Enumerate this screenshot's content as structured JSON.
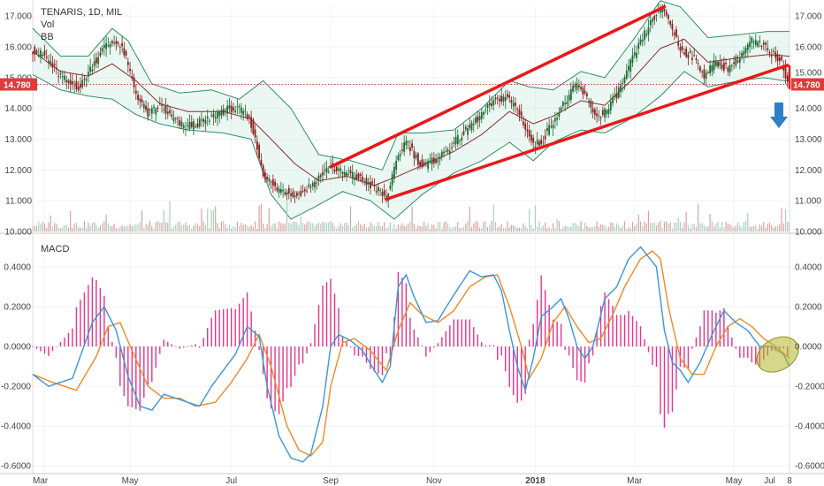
{
  "chart_data": [
    {
      "type": "candlestick",
      "title": "TENARIS, 1D, MIL",
      "indicators": [
        "Vol",
        "BB"
      ],
      "last_price": "14.780",
      "price_axis_ticks": [
        "17.000",
        "16.000",
        "15.000",
        "14.000",
        "13.000",
        "12.000",
        "11.000",
        "10.000"
      ],
      "ylim": [
        10.0,
        17.35
      ],
      "x_ticks": [
        "Mar",
        "May",
        "Jul",
        "Sep",
        "Nov",
        "2018",
        "Mar",
        "May",
        "Jul",
        "8"
      ],
      "close_path": [
        [
          0,
          15.9
        ],
        [
          6,
          15.7
        ],
        [
          12,
          15.2
        ],
        [
          18,
          14.8
        ],
        [
          24,
          14.7
        ],
        [
          30,
          15.4
        ],
        [
          36,
          16.0
        ],
        [
          42,
          16.2
        ],
        [
          46,
          15.8
        ],
        [
          52,
          14.5
        ],
        [
          58,
          13.8
        ],
        [
          64,
          14.1
        ],
        [
          70,
          13.7
        ],
        [
          76,
          13.4
        ],
        [
          82,
          13.5
        ],
        [
          88,
          13.6
        ],
        [
          94,
          13.9
        ],
        [
          100,
          14.0
        ],
        [
          106,
          13.9
        ],
        [
          110,
          13.5
        ],
        [
          116,
          11.9
        ],
        [
          122,
          11.4
        ],
        [
          128,
          11.3
        ],
        [
          134,
          11.2
        ],
        [
          140,
          11.5
        ],
        [
          146,
          11.9
        ],
        [
          150,
          12.1
        ],
        [
          156,
          11.9
        ],
        [
          162,
          11.8
        ],
        [
          168,
          11.6
        ],
        [
          174,
          11.3
        ],
        [
          178,
          11.1
        ],
        [
          184,
          12.4
        ],
        [
          188,
          13.0
        ],
        [
          192,
          12.5
        ],
        [
          196,
          12.1
        ],
        [
          202,
          12.3
        ],
        [
          208,
          12.6
        ],
        [
          214,
          13.0
        ],
        [
          220,
          13.4
        ],
        [
          226,
          13.8
        ],
        [
          232,
          14.2
        ],
        [
          238,
          14.4
        ],
        [
          244,
          14.0
        ],
        [
          248,
          13.4
        ],
        [
          252,
          12.8
        ],
        [
          256,
          12.9
        ],
        [
          262,
          13.6
        ],
        [
          268,
          14.2
        ],
        [
          274,
          14.8
        ],
        [
          280,
          14.2
        ],
        [
          284,
          13.7
        ],
        [
          290,
          14.0
        ],
        [
          296,
          14.7
        ],
        [
          302,
          15.6
        ],
        [
          308,
          16.4
        ],
        [
          314,
          17.1
        ],
        [
          318,
          17.2
        ],
        [
          322,
          16.6
        ],
        [
          326,
          15.9
        ],
        [
          332,
          15.7
        ],
        [
          338,
          15.1
        ],
        [
          344,
          15.5
        ],
        [
          350,
          15.3
        ],
        [
          356,
          15.7
        ],
        [
          362,
          16.2
        ],
        [
          368,
          16.0
        ],
        [
          372,
          15.8
        ],
        [
          376,
          15.6
        ],
        [
          381,
          14.78
        ]
      ],
      "bollinger": {
        "upper": [
          [
            0,
            16.6
          ],
          [
            14,
            15.7
          ],
          [
            28,
            15.7
          ],
          [
            40,
            16.6
          ],
          [
            48,
            16.2
          ],
          [
            60,
            14.8
          ],
          [
            74,
            14.5
          ],
          [
            90,
            14.6
          ],
          [
            104,
            14.3
          ],
          [
            116,
            14.9
          ],
          [
            130,
            14.0
          ],
          [
            144,
            12.5
          ],
          [
            160,
            12.3
          ],
          [
            176,
            12.0
          ],
          [
            184,
            13.2
          ],
          [
            196,
            13.2
          ],
          [
            212,
            13.3
          ],
          [
            226,
            14.0
          ],
          [
            240,
            14.9
          ],
          [
            250,
            14.7
          ],
          [
            262,
            14.6
          ],
          [
            276,
            15.2
          ],
          [
            288,
            15.0
          ],
          [
            302,
            16.2
          ],
          [
            316,
            17.5
          ],
          [
            326,
            17.3
          ],
          [
            340,
            16.3
          ],
          [
            356,
            16.4
          ],
          [
            370,
            16.5
          ],
          [
            378,
            16.5
          ]
        ],
        "lower": [
          [
            0,
            15.1
          ],
          [
            14,
            14.6
          ],
          [
            28,
            14.4
          ],
          [
            40,
            14.3
          ],
          [
            52,
            13.8
          ],
          [
            64,
            13.5
          ],
          [
            78,
            13.3
          ],
          [
            96,
            13.2
          ],
          [
            110,
            13.0
          ],
          [
            120,
            11.2
          ],
          [
            130,
            10.4
          ],
          [
            142,
            10.8
          ],
          [
            156,
            11.3
          ],
          [
            170,
            11.0
          ],
          [
            182,
            10.4
          ],
          [
            196,
            11.2
          ],
          [
            212,
            11.9
          ],
          [
            226,
            12.3
          ],
          [
            240,
            12.9
          ],
          [
            252,
            12.3
          ],
          [
            262,
            12.9
          ],
          [
            276,
            13.3
          ],
          [
            288,
            13.2
          ],
          [
            302,
            13.7
          ],
          [
            316,
            14.4
          ],
          [
            328,
            15.2
          ],
          [
            340,
            14.7
          ],
          [
            356,
            14.9
          ],
          [
            368,
            15.0
          ],
          [
            378,
            14.9
          ]
        ],
        "middle": [
          [
            0,
            15.85
          ],
          [
            14,
            15.2
          ],
          [
            28,
            15.05
          ],
          [
            40,
            15.45
          ],
          [
            52,
            14.9
          ],
          [
            64,
            14.15
          ],
          [
            78,
            13.9
          ],
          [
            96,
            13.9
          ],
          [
            110,
            13.65
          ],
          [
            120,
            13.0
          ],
          [
            132,
            12.2
          ],
          [
            144,
            11.65
          ],
          [
            158,
            11.8
          ],
          [
            172,
            11.5
          ],
          [
            184,
            11.8
          ],
          [
            198,
            12.2
          ],
          [
            212,
            12.6
          ],
          [
            226,
            13.15
          ],
          [
            240,
            13.9
          ],
          [
            252,
            13.5
          ],
          [
            262,
            13.75
          ],
          [
            276,
            14.25
          ],
          [
            288,
            14.1
          ],
          [
            302,
            14.95
          ],
          [
            316,
            15.95
          ],
          [
            328,
            16.25
          ],
          [
            340,
            15.5
          ],
          [
            356,
            15.65
          ],
          [
            370,
            15.75
          ],
          [
            380,
            15.7
          ]
        ]
      },
      "trend_channel": {
        "upper_line": [
          [
            150,
            12.1
          ],
          [
            318,
            17.3
          ]
        ],
        "lower_line": [
          [
            178,
            11.05
          ],
          [
            380,
            15.4
          ]
        ]
      },
      "support_level": 14.78,
      "annotations": [
        "down arrow"
      ],
      "volume": "per-bar histogram along bottom of price pane"
    },
    {
      "type": "line",
      "title": "MACD",
      "y_ticks": [
        "0.4000",
        "0.2000",
        "0.0000",
        "-0.2000",
        "-0.4000",
        "-0.6000"
      ],
      "ylim": [
        -0.63,
        0.56
      ],
      "macd": [
        [
          0,
          -0.14
        ],
        [
          8,
          -0.2
        ],
        [
          20,
          -0.16
        ],
        [
          30,
          0.12
        ],
        [
          36,
          0.2
        ],
        [
          42,
          0.08
        ],
        [
          48,
          -0.15
        ],
        [
          54,
          -0.3
        ],
        [
          60,
          -0.32
        ],
        [
          66,
          -0.24
        ],
        [
          72,
          -0.26
        ],
        [
          78,
          -0.28
        ],
        [
          84,
          -0.3
        ],
        [
          90,
          -0.2
        ],
        [
          96,
          -0.12
        ],
        [
          102,
          -0.04
        ],
        [
          108,
          0.1
        ],
        [
          114,
          0.05
        ],
        [
          118,
          -0.2
        ],
        [
          124,
          -0.45
        ],
        [
          130,
          -0.56
        ],
        [
          136,
          -0.58
        ],
        [
          140,
          -0.54
        ],
        [
          146,
          -0.3
        ],
        [
          150,
          0.0
        ],
        [
          154,
          0.06
        ],
        [
          160,
          0.03
        ],
        [
          166,
          -0.02
        ],
        [
          172,
          -0.12
        ],
        [
          176,
          -0.18
        ],
        [
          180,
          -0.1
        ],
        [
          184,
          0.3
        ],
        [
          188,
          0.36
        ],
        [
          192,
          0.25
        ],
        [
          198,
          0.12
        ],
        [
          204,
          0.13
        ],
        [
          212,
          0.26
        ],
        [
          220,
          0.38
        ],
        [
          226,
          0.35
        ],
        [
          232,
          0.36
        ],
        [
          236,
          0.28
        ],
        [
          240,
          0.08
        ],
        [
          244,
          -0.1
        ],
        [
          248,
          -0.22
        ],
        [
          252,
          -0.06
        ],
        [
          256,
          0.15
        ],
        [
          262,
          0.2
        ],
        [
          266,
          0.24
        ],
        [
          270,
          0.14
        ],
        [
          274,
          0.0
        ],
        [
          278,
          -0.06
        ],
        [
          282,
          0.0
        ],
        [
          288,
          0.24
        ],
        [
          294,
          0.3
        ],
        [
          300,
          0.44
        ],
        [
          306,
          0.5
        ],
        [
          310,
          0.45
        ],
        [
          314,
          0.4
        ],
        [
          318,
          0.08
        ],
        [
          322,
          -0.08
        ],
        [
          326,
          -0.12
        ],
        [
          330,
          -0.18
        ],
        [
          336,
          -0.08
        ],
        [
          342,
          0.06
        ],
        [
          348,
          0.18
        ],
        [
          354,
          0.12
        ],
        [
          360,
          0.08
        ],
        [
          366,
          0.0
        ],
        [
          372,
          0.0
        ],
        [
          378,
          -0.04
        ],
        [
          381,
          -0.1
        ]
      ],
      "signal": [
        [
          0,
          -0.14
        ],
        [
          10,
          -0.18
        ],
        [
          22,
          -0.22
        ],
        [
          32,
          -0.05
        ],
        [
          38,
          0.1
        ],
        [
          44,
          0.12
        ],
        [
          50,
          -0.02
        ],
        [
          58,
          -0.2
        ],
        [
          66,
          -0.26
        ],
        [
          74,
          -0.26
        ],
        [
          82,
          -0.3
        ],
        [
          92,
          -0.28
        ],
        [
          100,
          -0.18
        ],
        [
          108,
          -0.06
        ],
        [
          114,
          0.06
        ],
        [
          120,
          -0.1
        ],
        [
          128,
          -0.4
        ],
        [
          134,
          -0.52
        ],
        [
          140,
          -0.55
        ],
        [
          146,
          -0.48
        ],
        [
          150,
          -0.2
        ],
        [
          156,
          0.02
        ],
        [
          162,
          0.04
        ],
        [
          170,
          -0.02
        ],
        [
          178,
          -0.12
        ],
        [
          184,
          0.08
        ],
        [
          190,
          0.22
        ],
        [
          196,
          0.16
        ],
        [
          204,
          0.12
        ],
        [
          212,
          0.18
        ],
        [
          220,
          0.3
        ],
        [
          228,
          0.35
        ],
        [
          234,
          0.36
        ],
        [
          240,
          0.2
        ],
        [
          246,
          0.0
        ],
        [
          250,
          -0.16
        ],
        [
          256,
          -0.06
        ],
        [
          262,
          0.12
        ],
        [
          268,
          0.2
        ],
        [
          274,
          0.1
        ],
        [
          280,
          0.02
        ],
        [
          286,
          0.04
        ],
        [
          292,
          0.16
        ],
        [
          298,
          0.3
        ],
        [
          306,
          0.44
        ],
        [
          312,
          0.48
        ],
        [
          316,
          0.44
        ],
        [
          320,
          0.2
        ],
        [
          326,
          -0.06
        ],
        [
          332,
          -0.14
        ],
        [
          338,
          -0.14
        ],
        [
          344,
          0.0
        ],
        [
          350,
          0.1
        ],
        [
          356,
          0.14
        ],
        [
          362,
          0.1
        ],
        [
          368,
          0.04
        ],
        [
          374,
          0.0
        ],
        [
          381,
          -0.06
        ]
      ],
      "histogram": "difference of macd and signal, drawn as pink bars",
      "annotations": [
        "highlighted ellipse around latest bearish crossover"
      ]
    }
  ]
}
